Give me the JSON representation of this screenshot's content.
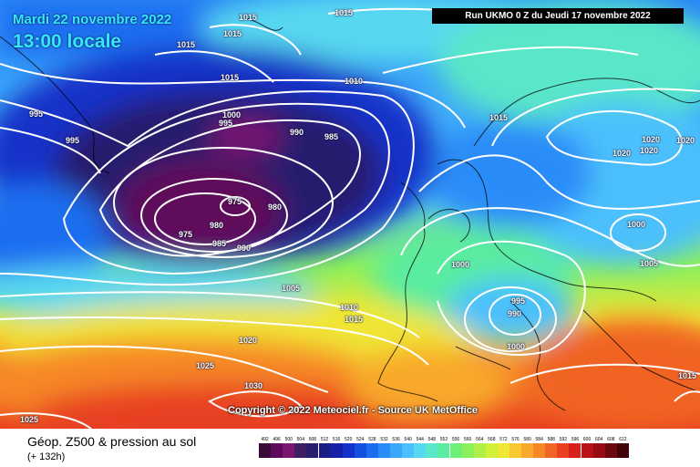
{
  "header": {
    "date": "Mardi 22 novembre 2022",
    "time": "13:00 locale",
    "run": "Run UKMO 0 Z du Jeudi 17 novembre 2022"
  },
  "copyright": "Copyright © 2022 Meteociel.fr - Source UK MetOffice",
  "footer": {
    "title": "Géop. Z500 & pression au sol",
    "subtitle": "(+ 132h)"
  },
  "isobar_labels": [
    "1015",
    "1015",
    "1015",
    "1015",
    "1015",
    "1010",
    "995",
    "995",
    "1000",
    "995",
    "990",
    "985",
    "975",
    "980",
    "980",
    "975",
    "985",
    "990",
    "1005",
    "1015",
    "1020",
    "1020",
    "1020",
    "1020",
    "1000",
    "1000",
    "1005",
    "995",
    "990",
    "1000",
    "1010",
    "1015",
    "1020",
    "1025",
    "1030",
    "1025",
    "1015"
  ],
  "legend": {
    "values": [
      "492",
      "496",
      "500",
      "504",
      "508",
      "512",
      "516",
      "520",
      "524",
      "528",
      "532",
      "536",
      "540",
      "544",
      "548",
      "552",
      "556",
      "560",
      "564",
      "568",
      "572",
      "576",
      "580",
      "584",
      "588",
      "592",
      "596",
      "600",
      "604",
      "608",
      "612"
    ],
    "colors": [
      "#3a0a38",
      "#5e0a5a",
      "#7a1870",
      "#3e1f64",
      "#281e6e",
      "#1a1f88",
      "#1620a8",
      "#1432c8",
      "#1450e0",
      "#1a6ef0",
      "#2a8cf8",
      "#3aa8fa",
      "#4cc0fc",
      "#58d8f0",
      "#5ae6c8",
      "#5aeca0",
      "#6ef078",
      "#8cf05a",
      "#aef046",
      "#d2f03a",
      "#f0e634",
      "#f8c830",
      "#f8a82c",
      "#f68828",
      "#f06424",
      "#e84020",
      "#d8201c",
      "#b81418",
      "#980c14",
      "#6e0810",
      "#400408"
    ]
  }
}
